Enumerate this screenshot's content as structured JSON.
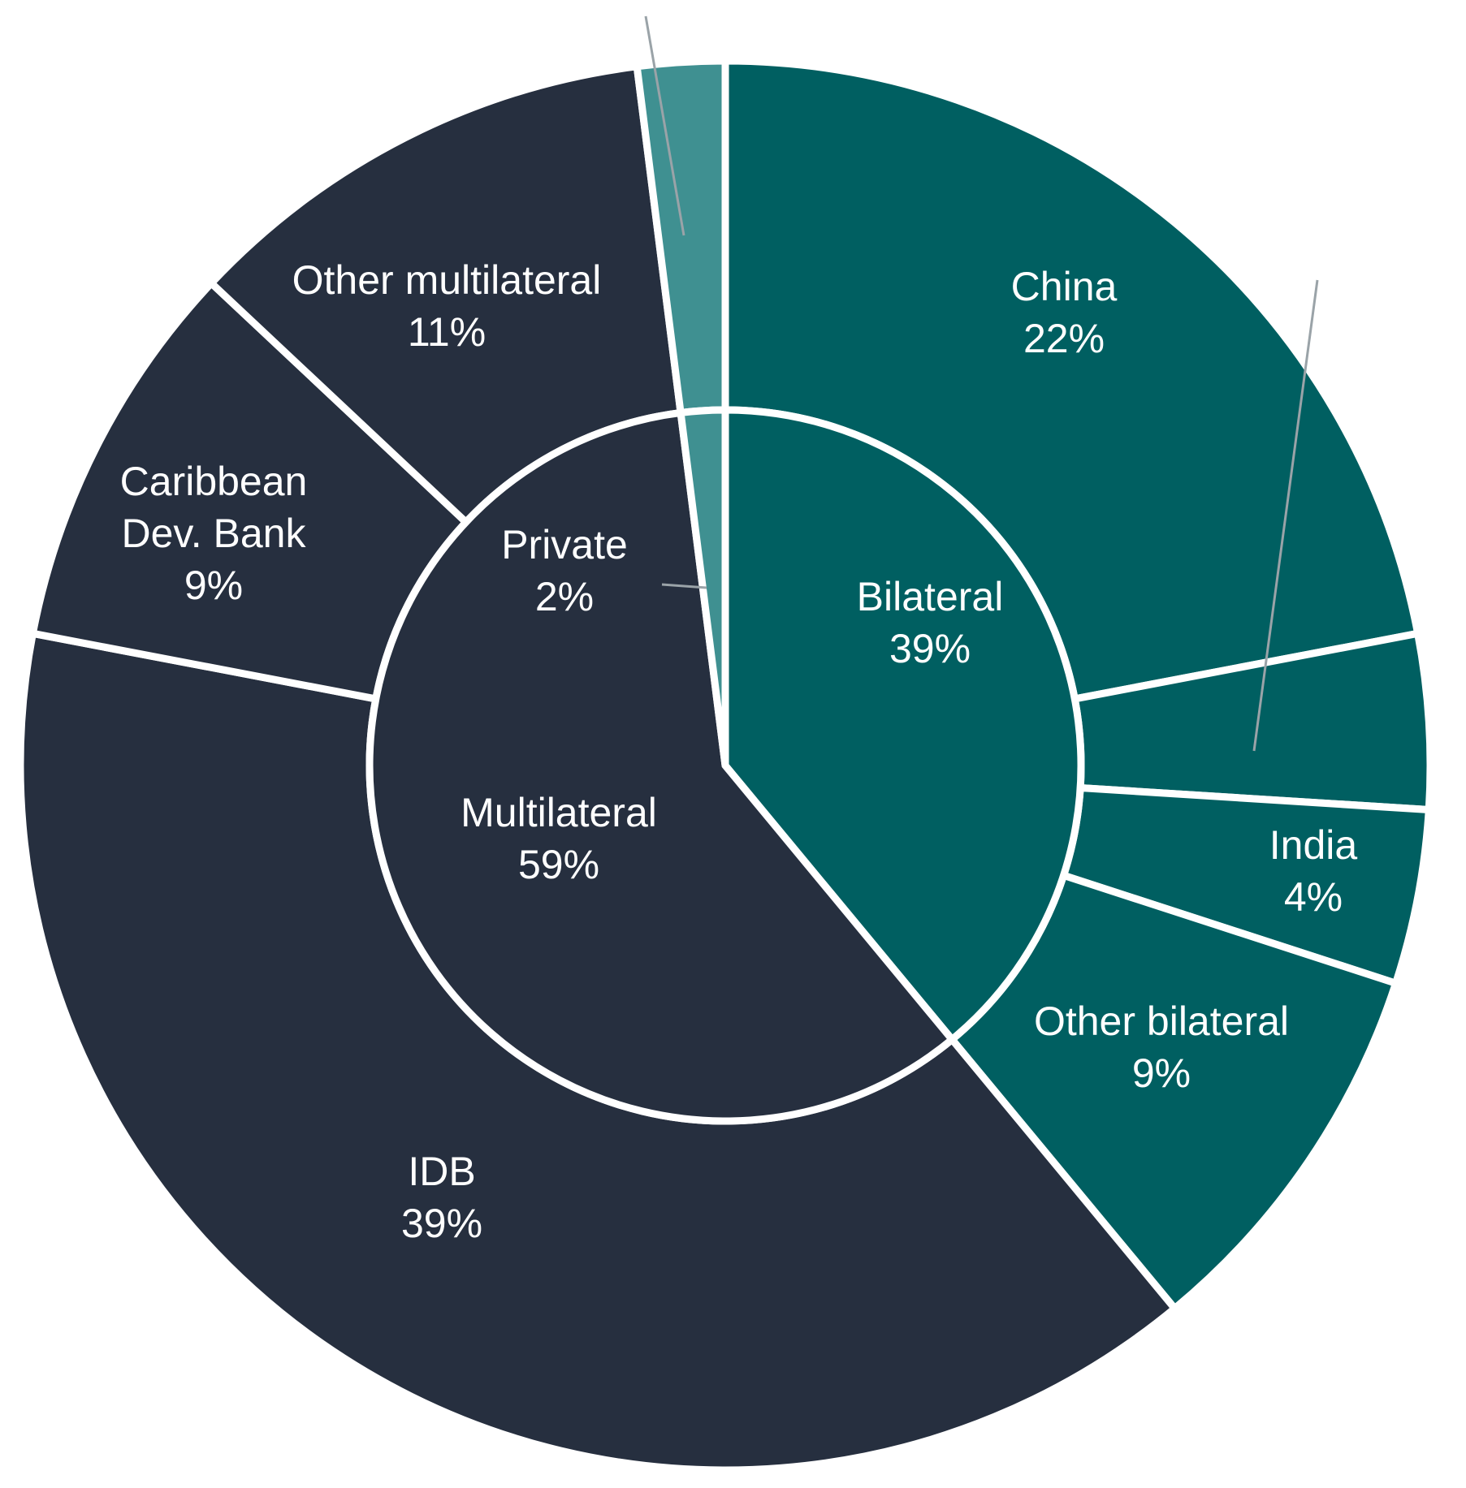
{
  "chart_data": {
    "type": "pie",
    "variant": "sunburst",
    "colors": {
      "Bilateral": "#005f61",
      "Multilateral": "#262f3f",
      "Private": "#3f9091",
      "separator": "#ffffff",
      "label_text": "#ffffff",
      "leader_line": "#9aa3a8"
    },
    "inner_ring": [
      {
        "name": "Bilateral",
        "label": "Bilateral",
        "pct_label": "39%",
        "value": 39,
        "color": "#005f61"
      },
      {
        "name": "Multilateral",
        "label": "Multilateral",
        "pct_label": "59%",
        "value": 59,
        "color": "#262f3f"
      },
      {
        "name": "Private",
        "label": "Private",
        "pct_label": "2%",
        "value": 2,
        "color": "#3f9091"
      }
    ],
    "outer_ring": [
      {
        "name": "China",
        "parent": "Bilateral",
        "label": "China",
        "pct_label": "22%",
        "value": 22,
        "color": "#005f61"
      },
      {
        "name": "Unlabeled bilateral",
        "parent": "Bilateral",
        "label": "",
        "pct_label": "",
        "value": 4,
        "color": "#005f61"
      },
      {
        "name": "India",
        "parent": "Bilateral",
        "label": "India",
        "pct_label": "4%",
        "value": 4,
        "color": "#005f61"
      },
      {
        "name": "Other bilateral",
        "parent": "Bilateral",
        "label": "Other bilateral",
        "pct_label": "9%",
        "value": 9,
        "color": "#005f61"
      },
      {
        "name": "IDB",
        "parent": "Multilateral",
        "label": "IDB",
        "pct_label": "39%",
        "value": 39,
        "color": "#262f3f"
      },
      {
        "name": "Caribbean Dev. Bank",
        "parent": "Multilateral",
        "label": "Caribbean|Dev. Bank",
        "pct_label": "9%",
        "value": 9,
        "color": "#262f3f"
      },
      {
        "name": "Other multilateral",
        "parent": "Multilateral",
        "label": "Other multilateral",
        "pct_label": "11%",
        "value": 11,
        "color": "#262f3f"
      },
      {
        "name": "Private (outer)",
        "parent": "Private",
        "label": "",
        "pct_label": "",
        "value": 2,
        "color": "#3f9091"
      }
    ]
  }
}
